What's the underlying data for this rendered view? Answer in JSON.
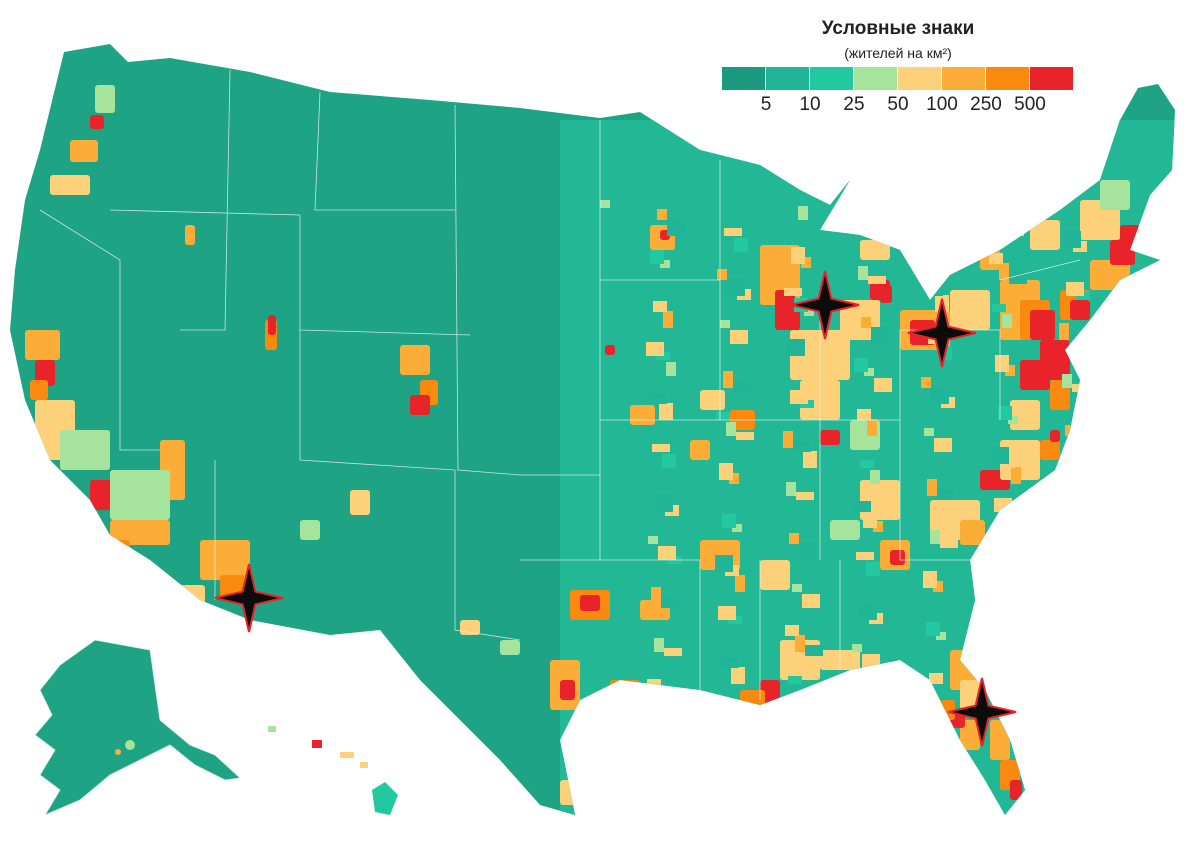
{
  "legend": {
    "title": "Условные знаки",
    "subtitle": "(жителей на км²)",
    "colors": [
      "#1b9a80",
      "#1fb596",
      "#22c9a0",
      "#a6e39d",
      "#fdd07a",
      "#fbad38",
      "#f98a0f",
      "#e8232a"
    ],
    "tick_labels": [
      "5",
      "10",
      "25",
      "50",
      "100",
      "250",
      "500"
    ]
  },
  "map": {
    "subject": "population density by county, contiguous United States with Alaska and Hawaii insets",
    "base_color": "#1fa385",
    "border_color": "#dff3ec",
    "markers": [
      {
        "name": "marker-los-angeles-phoenix",
        "icon": "four-point-star"
      },
      {
        "name": "marker-chicago",
        "icon": "four-point-star"
      },
      {
        "name": "marker-cleveland",
        "icon": "four-point-star"
      },
      {
        "name": "marker-miami",
        "icon": "four-point-star"
      }
    ]
  }
}
